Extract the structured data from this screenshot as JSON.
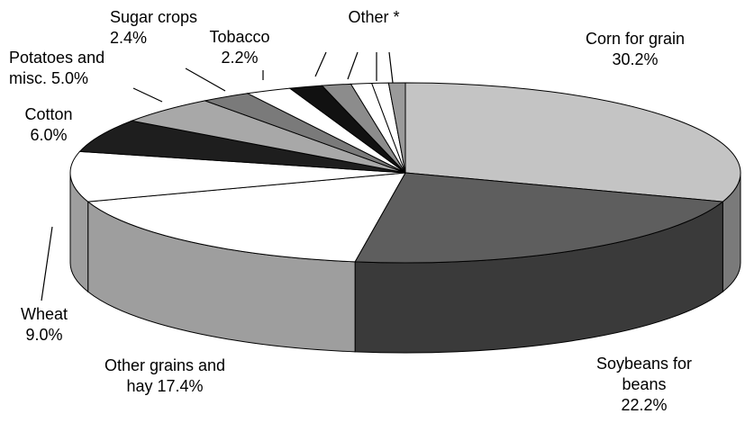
{
  "chart_data": {
    "type": "pie3d",
    "categories": [
      "Corn for grain",
      "Soybeans for beans",
      "Other grains and hay",
      "Wheat",
      "Cotton",
      "Potatoes and misc.",
      "Sugar crops",
      "Tobacco",
      null,
      null,
      null,
      null,
      null
    ],
    "values": [
      30.2,
      22.2,
      17.4,
      9.0,
      6.0,
      5.0,
      2.4,
      2.2,
      1.6,
      1.4,
      1.0,
      0.8,
      0.8
    ],
    "value_labels": [
      "30.2%",
      "22.2%",
      "17.4%",
      "9.0%",
      "6.0%",
      "5.0%",
      "2.4%",
      "2.2%",
      null,
      null,
      null,
      null,
      null
    ],
    "colors": [
      "#c4c4c4",
      "#5e5e5e",
      "#ffffff",
      "#ffffff",
      "#1e1e1e",
      "#a8a8a8",
      "#7a7a7a",
      "#ffffff",
      "#111111",
      "#8c8c8c",
      "#ffffff",
      "#ffffff",
      "#9a9a9a"
    ],
    "annotation": "Other *"
  }
}
